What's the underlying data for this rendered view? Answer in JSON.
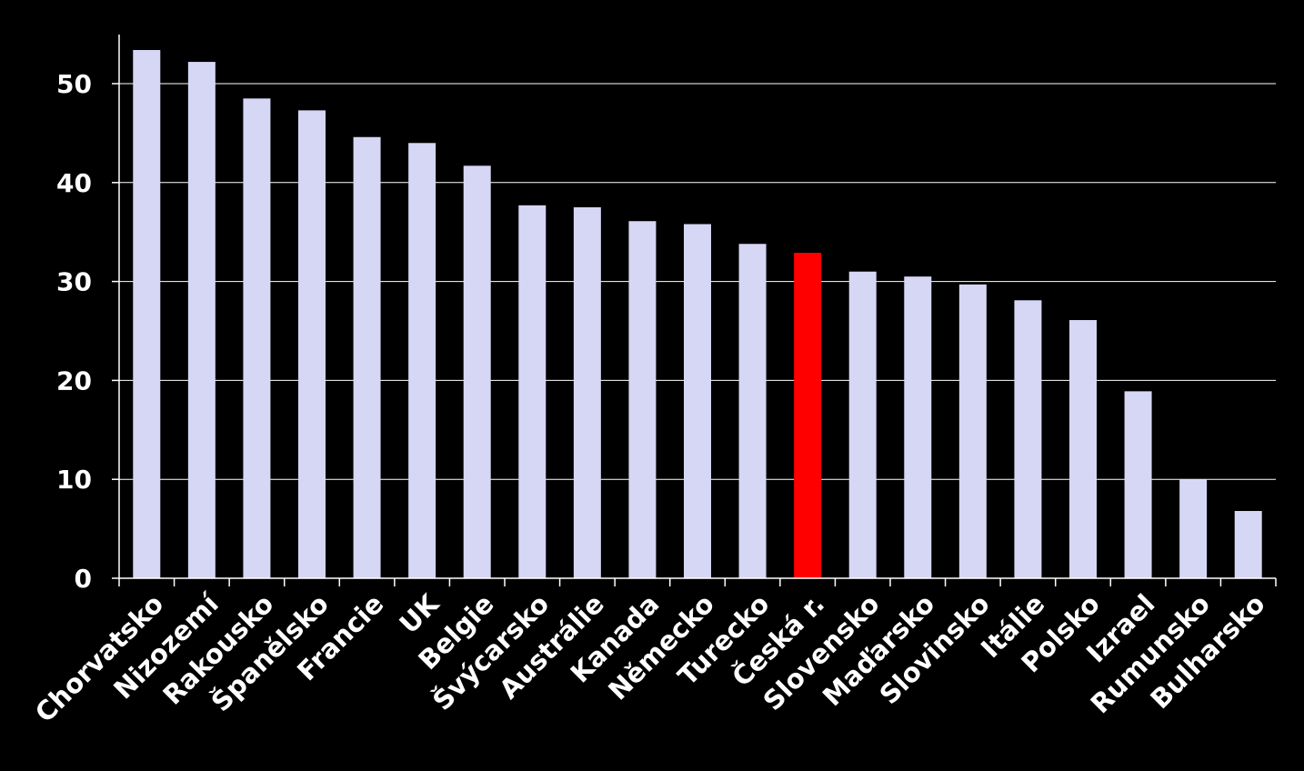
{
  "chart_data": {
    "type": "bar",
    "title": "",
    "xlabel": "",
    "ylabel": "",
    "ylim": [
      0,
      55
    ],
    "yticks": [
      0,
      10,
      20,
      30,
      40,
      50
    ],
    "grid": true,
    "legend": "none",
    "categories": [
      "Chorvatsko",
      "Nizozemí",
      "Rakousko",
      "Španělsko",
      "Francie",
      "UK",
      "Belgie",
      "Švýcarsko",
      "Austrálie",
      "Kanada",
      "Německo",
      "Turecko",
      "Česká r.",
      "Slovensko",
      "Maďarsko",
      "Slovinsko",
      "Itálie",
      "Polsko",
      "Izrael",
      "Rumunsko",
      "Bulharsko"
    ],
    "values": [
      53.4,
      52.2,
      48.5,
      47.3,
      44.6,
      44.0,
      41.7,
      37.7,
      37.5,
      36.1,
      35.8,
      33.8,
      32.9,
      31.0,
      30.5,
      29.7,
      28.1,
      26.1,
      18.9,
      10.0,
      6.8
    ],
    "highlight_category": "Česká r.",
    "colors": {
      "background": "#000000",
      "bar": "#D6D6F5",
      "highlight": "#FF0000",
      "axis": "#FFFFFF",
      "grid": "#FFFFFF",
      "text": "#FFFFFF"
    }
  }
}
